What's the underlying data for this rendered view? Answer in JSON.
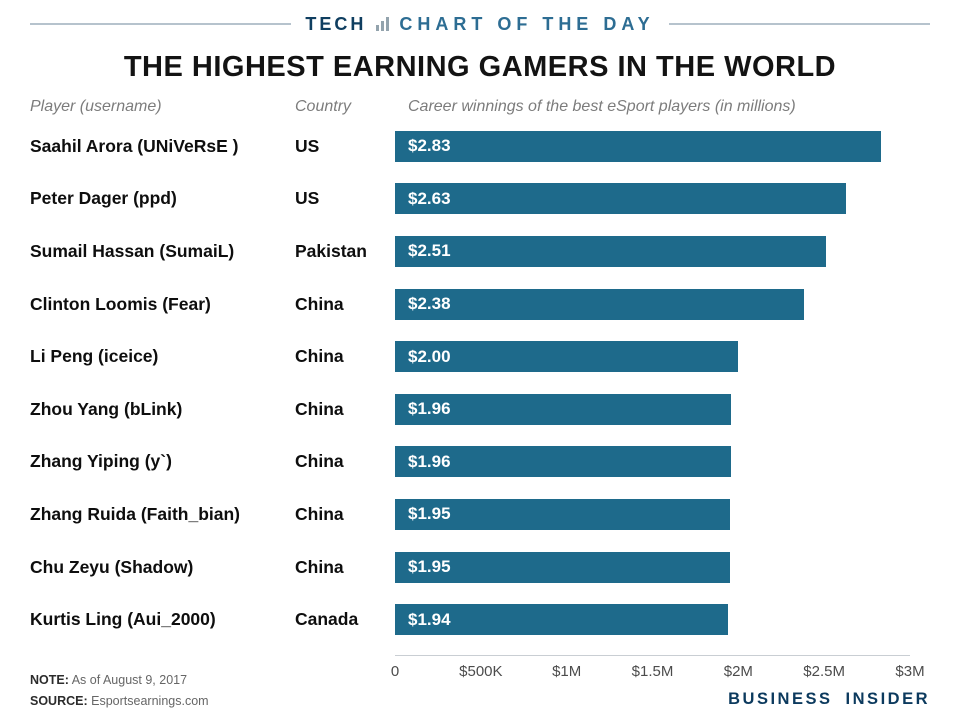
{
  "kicker": {
    "left": "TECH",
    "right": "CHART OF THE DAY"
  },
  "title": "THE HIGHEST EARNING GAMERS IN THE WORLD",
  "table_headers": {
    "player": "Player (username)",
    "country": "Country",
    "value": "Career winnings of the best eSport players (in millions)"
  },
  "chart_data": {
    "type": "bar",
    "orientation": "horizontal",
    "title": "THE HIGHEST EARNING GAMERS IN THE WORLD",
    "series_label": "Career winnings of the best eSport players (in millions)",
    "rows": [
      {
        "player": "Saahil Arora (UNiVeRsE )",
        "country": "US",
        "value": 2.83,
        "label": "$2.83"
      },
      {
        "player": "Peter Dager (ppd)",
        "country": "US",
        "value": 2.63,
        "label": "$2.63"
      },
      {
        "player": "Sumail Hassan (SumaiL)",
        "country": "Pakistan",
        "value": 2.51,
        "label": "$2.51"
      },
      {
        "player": "Clinton Loomis (Fear)",
        "country": "China",
        "value": 2.38,
        "label": "$2.38"
      },
      {
        "player": "Li Peng (iceice)",
        "country": "China",
        "value": 2.0,
        "label": "$2.00"
      },
      {
        "player": "Zhou Yang (bLink)",
        "country": "China",
        "value": 1.96,
        "label": "$1.96"
      },
      {
        "player": "Zhang Yiping (y`)",
        "country": "China",
        "value": 1.96,
        "label": "$1.96"
      },
      {
        "player": "Zhang Ruida (Faith_bian)",
        "country": "China",
        "value": 1.95,
        "label": "$1.95"
      },
      {
        "player": "Chu Zeyu (Shadow)",
        "country": "China",
        "value": 1.95,
        "label": "$1.95"
      },
      {
        "player": "Kurtis Ling (Aui_2000)",
        "country": "Canada",
        "value": 1.94,
        "label": "$1.94"
      }
    ],
    "xlim": [
      0,
      3
    ],
    "x_ticks": [
      {
        "value": 0,
        "label": "0"
      },
      {
        "value": 0.5,
        "label": "$500K"
      },
      {
        "value": 1,
        "label": "$1M"
      },
      {
        "value": 1.5,
        "label": "$1.5M"
      },
      {
        "value": 2,
        "label": "$2M"
      },
      {
        "value": 2.5,
        "label": "$2.5M"
      },
      {
        "value": 3,
        "label": "$3M"
      }
    ],
    "bar_color": "#1e6a8b",
    "grid": false,
    "legend": false
  },
  "footer": {
    "note_label": "NOTE:",
    "note_text": "As of August 9, 2017",
    "source_label": "SOURCE:",
    "source_text": "Esportsearnings.com",
    "brand": "BUSINESS INSIDER"
  },
  "colors": {
    "bar": "#1e6a8b",
    "kicker_tech": "#0f3e60",
    "kicker_chart": "#2d6d93",
    "brand_navy": "#0c3a5e"
  }
}
